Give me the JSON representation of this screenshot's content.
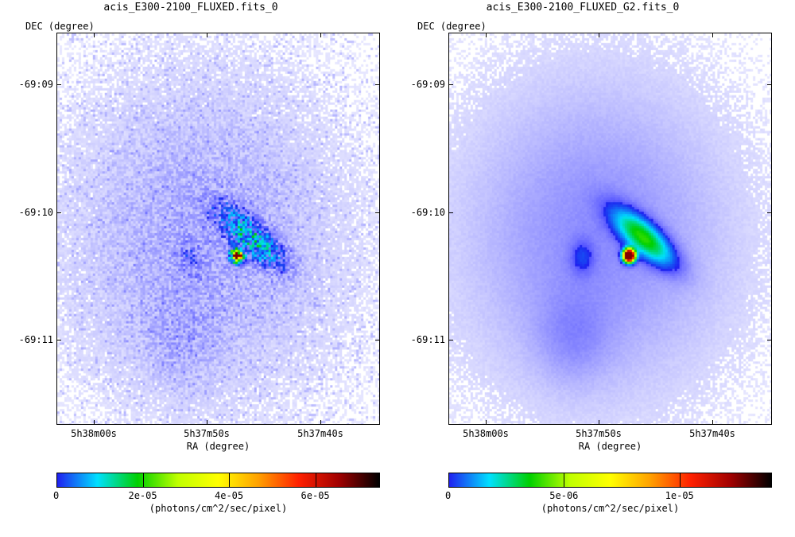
{
  "chart_data": [
    {
      "type": "heatmap",
      "title": "acis_E300-2100_FLUXED.fits_0",
      "xlabel": "RA (degree)",
      "ylabel": "DEC (degree)",
      "x_ticks": [
        "5h38m00s",
        "5h37m50s",
        "5h37m40s"
      ],
      "y_ticks": [
        "-69:09",
        "-69:10",
        "-69:11"
      ],
      "smoothed": false,
      "colorbar": {
        "min": 0,
        "max": 7.5e-05,
        "ticks": [
          {
            "value": 0,
            "label": "0"
          },
          {
            "value": 2e-05,
            "label": "2e-05"
          },
          {
            "value": 4e-05,
            "label": "4e-05"
          },
          {
            "value": 6e-05,
            "label": "6e-05"
          }
        ],
        "unit": "(photons/cm^2/sec/pixel)"
      }
    },
    {
      "type": "heatmap",
      "title": "acis_E300-2100_FLUXED_G2.fits_0",
      "xlabel": "RA (degree)",
      "ylabel": "DEC (degree)",
      "x_ticks": [
        "5h38m00s",
        "5h37m50s",
        "5h37m40s"
      ],
      "y_ticks": [
        "-69:09",
        "-69:10",
        "-69:11"
      ],
      "smoothed": true,
      "colorbar": {
        "min": 0,
        "max": 1.4e-05,
        "ticks": [
          {
            "value": 0,
            "label": "0"
          },
          {
            "value": 5e-06,
            "label": "5e-06"
          },
          {
            "value": 1e-05,
            "label": "1e-05"
          }
        ],
        "unit": "(photons/cm^2/sec/pixel)"
      }
    }
  ],
  "colormap_stops": [
    "#ffffff",
    "#2020f0",
    "#00e0ff",
    "#00d000",
    "#c0ff00",
    "#ffff00",
    "#ffa000",
    "#ff2000",
    "#a00000",
    "#000000"
  ]
}
